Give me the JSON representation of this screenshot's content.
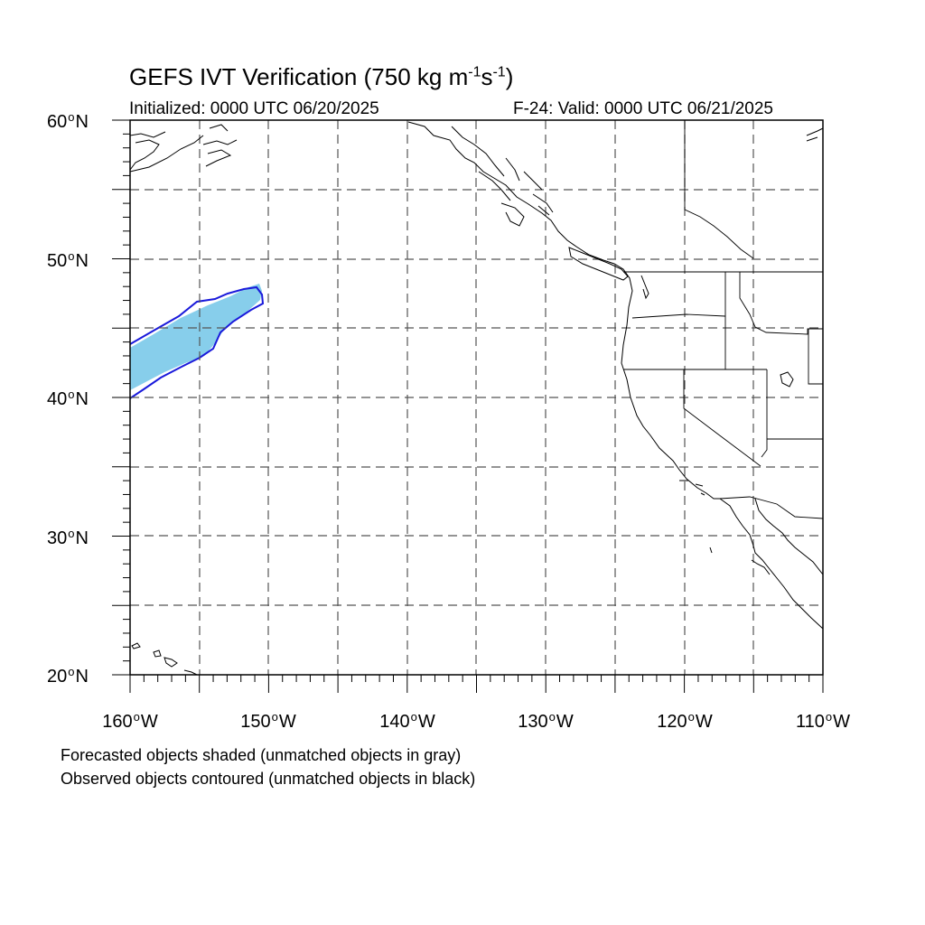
{
  "title": {
    "main": "GEFS IVT Verification (750 kg m",
    "exp1": "-1",
    "mid": "s",
    "exp2": "-1",
    "end": ")"
  },
  "initialized": "Initialized: 0000 UTC 06/20/2025",
  "valid": "F-24: Valid: 0000 UTC 06/21/2025",
  "lat_labels": [
    {
      "num": "60",
      "hem": "N"
    },
    {
      "num": "50",
      "hem": "N"
    },
    {
      "num": "40",
      "hem": "N"
    },
    {
      "num": "30",
      "hem": "N"
    },
    {
      "num": "20",
      "hem": "N"
    }
  ],
  "lon_labels": [
    {
      "num": "160",
      "hem": "W"
    },
    {
      "num": "150",
      "hem": "W"
    },
    {
      "num": "140",
      "hem": "W"
    },
    {
      "num": "130",
      "hem": "W"
    },
    {
      "num": "120",
      "hem": "W"
    },
    {
      "num": "110",
      "hem": "W"
    }
  ],
  "notes": {
    "forecast": "Forecasted objects shaded (unmatched objects in gray)",
    "observed": "Observed objects contoured (unmatched objects in black)"
  },
  "map": {
    "projection": "cylindrical equidistant",
    "lon_range": [
      -160,
      -110
    ],
    "lat_range": [
      20,
      60
    ],
    "grid_spacing_deg": 5,
    "grid_style": "dashed"
  },
  "colors": {
    "forecast_fill": "#87ceeb",
    "observed_contour": "#1a1adb",
    "coastline": "#000000",
    "grid": "#555555"
  }
}
